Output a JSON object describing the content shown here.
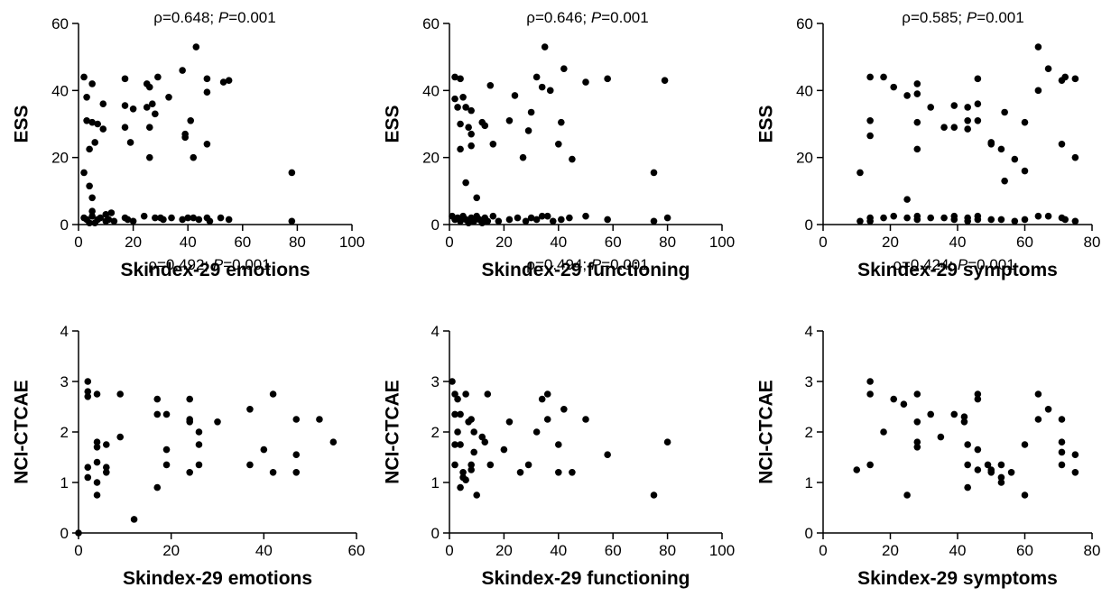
{
  "figure": {
    "panels": [
      {
        "stat_rho": "ρ=0.648; ",
        "stat_p_italic": "P",
        "stat_p_value": "=0.001"
      },
      {
        "stat_rho": "ρ=0.646; ",
        "stat_p_italic": "P",
        "stat_p_value": "=0.001"
      },
      {
        "stat_rho": "ρ=0.585; ",
        "stat_p_italic": "P",
        "stat_p_value": "=0.001"
      },
      {
        "stat_rho": "ρ=0.492; ",
        "stat_p_italic": "P",
        "stat_p_value": "=0.001"
      },
      {
        "stat_rho": "ρ=0.494; ",
        "stat_p_italic": "P",
        "stat_p_value": "=0.001"
      },
      {
        "stat_rho": "ρ=0.424; ",
        "stat_p_italic": "P",
        "stat_p_value": "=0.001"
      }
    ]
  },
  "chart_data": [
    {
      "type": "scatter",
      "xlabel": "Skindex-29 emotions",
      "ylabel": "ESS",
      "xlim": [
        0,
        100
      ],
      "ylim": [
        0,
        60
      ],
      "xticks": [
        "0",
        "20",
        "40",
        "60",
        "80",
        "100"
      ],
      "yticks": [
        "0",
        "20",
        "40",
        "60"
      ],
      "annotation": "ρ=0.648; P=0.001",
      "points": [
        [
          2,
          44
        ],
        [
          3,
          38
        ],
        [
          5,
          42
        ],
        [
          3,
          31
        ],
        [
          4,
          22.5
        ],
        [
          2,
          15.5
        ],
        [
          5,
          30.5
        ],
        [
          7,
          30
        ],
        [
          6,
          24.5
        ],
        [
          4,
          11.5
        ],
        [
          5,
          8
        ],
        [
          5,
          4
        ],
        [
          9,
          36
        ],
        [
          9,
          28.5
        ],
        [
          10,
          3
        ],
        [
          12,
          3.5
        ],
        [
          2,
          2
        ],
        [
          3,
          1.5
        ],
        [
          5,
          2.5
        ],
        [
          7,
          1.5
        ],
        [
          8,
          2
        ],
        [
          10,
          1
        ],
        [
          11,
          1.5
        ],
        [
          4,
          0.5
        ],
        [
          6,
          0.5
        ],
        [
          13,
          1
        ],
        [
          17,
          43.5
        ],
        [
          17,
          35.5
        ],
        [
          17,
          29
        ],
        [
          20,
          34.5
        ],
        [
          19,
          24.5
        ],
        [
          17,
          2
        ],
        [
          18,
          1.5
        ],
        [
          20,
          1
        ],
        [
          25,
          42
        ],
        [
          26,
          41
        ],
        [
          25,
          35
        ],
        [
          26,
          29
        ],
        [
          27,
          36
        ],
        [
          28,
          33
        ],
        [
          26,
          20
        ],
        [
          29,
          44
        ],
        [
          28,
          2
        ],
        [
          24,
          2.5
        ],
        [
          30,
          2
        ],
        [
          31,
          1.5
        ],
        [
          33,
          38
        ],
        [
          34,
          2
        ],
        [
          38,
          46
        ],
        [
          39,
          27
        ],
        [
          39,
          26
        ],
        [
          41,
          31
        ],
        [
          42,
          20
        ],
        [
          43,
          53
        ],
        [
          38,
          1.5
        ],
        [
          40,
          2
        ],
        [
          42,
          2
        ],
        [
          44,
          1.5
        ],
        [
          47,
          43.5
        ],
        [
          47,
          39.5
        ],
        [
          47,
          24
        ],
        [
          47,
          2
        ],
        [
          48,
          1
        ],
        [
          53,
          42.5
        ],
        [
          55,
          43
        ],
        [
          52,
          2
        ],
        [
          55,
          1.5
        ],
        [
          78,
          15.5
        ],
        [
          78,
          1
        ]
      ]
    },
    {
      "type": "scatter",
      "xlabel": "Skindex-29 functioning",
      "ylabel": "ESS",
      "xlim": [
        0,
        100
      ],
      "ylim": [
        0,
        60
      ],
      "xticks": [
        "0",
        "20",
        "40",
        "60",
        "80",
        "100"
      ],
      "yticks": [
        "0",
        "20",
        "40",
        "60"
      ],
      "annotation": "ρ=0.646; P=0.001",
      "points": [
        [
          2,
          44
        ],
        [
          4,
          43.5
        ],
        [
          2,
          37.5
        ],
        [
          5,
          38
        ],
        [
          3,
          35
        ],
        [
          6,
          35
        ],
        [
          8,
          34
        ],
        [
          4,
          30
        ],
        [
          7,
          29
        ],
        [
          8,
          27
        ],
        [
          8,
          23.5
        ],
        [
          4,
          22.5
        ],
        [
          6,
          12.5
        ],
        [
          10,
          8
        ],
        [
          12,
          30.5
        ],
        [
          13,
          29.5
        ],
        [
          15,
          41.5
        ],
        [
          16,
          24
        ],
        [
          22,
          31
        ],
        [
          24,
          38.5
        ],
        [
          27,
          20
        ],
        [
          30,
          33.5
        ],
        [
          29,
          28
        ],
        [
          32,
          44
        ],
        [
          34,
          41
        ],
        [
          35,
          53
        ],
        [
          37,
          40
        ],
        [
          40,
          24
        ],
        [
          41,
          30.5
        ],
        [
          42,
          46.5
        ],
        [
          45,
          19.5
        ],
        [
          50,
          42.5
        ],
        [
          58,
          43.5
        ],
        [
          75,
          15.5
        ],
        [
          79,
          43
        ],
        [
          1,
          2.5
        ],
        [
          2,
          1.5
        ],
        [
          3,
          2
        ],
        [
          4,
          1
        ],
        [
          5,
          2.5
        ],
        [
          6,
          1.5
        ],
        [
          7,
          0.5
        ],
        [
          8,
          2
        ],
        [
          9,
          1
        ],
        [
          10,
          2.5
        ],
        [
          11,
          1.5
        ],
        [
          12,
          0.5
        ],
        [
          13,
          2
        ],
        [
          14,
          1
        ],
        [
          16,
          2.5
        ],
        [
          18,
          1
        ],
        [
          22,
          1.5
        ],
        [
          25,
          2
        ],
        [
          28,
          1
        ],
        [
          30,
          2
        ],
        [
          32,
          1.5
        ],
        [
          34,
          2.5
        ],
        [
          36,
          2.5
        ],
        [
          38,
          1
        ],
        [
          41,
          1.5
        ],
        [
          44,
          2
        ],
        [
          50,
          2.5
        ],
        [
          58,
          1.5
        ],
        [
          75,
          1
        ],
        [
          80,
          2
        ]
      ]
    },
    {
      "type": "scatter",
      "xlabel": "Skindex-29 symptoms",
      "ylabel": "ESS",
      "xlim": [
        0,
        80
      ],
      "ylim": [
        0,
        60
      ],
      "xticks": [
        "0",
        "20",
        "40",
        "60",
        "80"
      ],
      "yticks": [
        "0",
        "20",
        "40",
        "60"
      ],
      "annotation": "ρ=0.585; P=0.001",
      "points": [
        [
          11,
          15.5
        ],
        [
          14,
          44
        ],
        [
          14,
          31
        ],
        [
          14,
          26.5
        ],
        [
          18,
          44
        ],
        [
          21,
          41
        ],
        [
          25,
          38.5
        ],
        [
          25,
          7.5
        ],
        [
          28,
          42
        ],
        [
          28,
          39
        ],
        [
          28,
          30.5
        ],
        [
          28,
          22.5
        ],
        [
          32,
          35
        ],
        [
          36,
          29
        ],
        [
          39,
          35.5
        ],
        [
          39,
          29
        ],
        [
          43,
          31
        ],
        [
          43,
          28.5
        ],
        [
          43,
          35
        ],
        [
          46,
          43.5
        ],
        [
          46,
          36
        ],
        [
          46,
          31
        ],
        [
          50,
          24.5
        ],
        [
          50,
          24
        ],
        [
          53,
          22.5
        ],
        [
          54,
          13
        ],
        [
          54,
          33.5
        ],
        [
          57,
          19.5
        ],
        [
          60,
          30.5
        ],
        [
          60,
          16
        ],
        [
          64,
          53
        ],
        [
          64,
          40
        ],
        [
          67,
          46.5
        ],
        [
          71,
          43
        ],
        [
          71,
          24
        ],
        [
          72,
          44
        ],
        [
          75,
          20
        ],
        [
          75,
          43.5
        ],
        [
          11,
          1
        ],
        [
          14,
          2
        ],
        [
          14,
          1
        ],
        [
          18,
          2
        ],
        [
          21,
          2.5
        ],
        [
          25,
          2
        ],
        [
          28,
          2.5
        ],
        [
          28,
          1.5
        ],
        [
          32,
          2
        ],
        [
          36,
          2
        ],
        [
          39,
          2.5
        ],
        [
          39,
          1.5
        ],
        [
          43,
          2
        ],
        [
          43,
          1
        ],
        [
          46,
          2.5
        ],
        [
          46,
          1.5
        ],
        [
          50,
          1.5
        ],
        [
          53,
          1.5
        ],
        [
          57,
          1
        ],
        [
          60,
          1.5
        ],
        [
          64,
          2.5
        ],
        [
          67,
          2.5
        ],
        [
          71,
          2
        ],
        [
          72,
          1.5
        ],
        [
          75,
          1
        ]
      ]
    },
    {
      "type": "scatter",
      "xlabel": "Skindex-29 emotions",
      "ylabel": "NCI-CTCAE",
      "xlim": [
        0,
        60
      ],
      "ylim": [
        0,
        4
      ],
      "xticks": [
        "0",
        "20",
        "40",
        "60"
      ],
      "yticks": [
        "0",
        "1",
        "2",
        "3",
        "4"
      ],
      "annotation": "ρ=0.492; P=0.001",
      "points": [
        [
          0,
          0
        ],
        [
          2,
          3
        ],
        [
          2,
          2.8
        ],
        [
          2,
          2.7
        ],
        [
          2,
          1.3
        ],
        [
          2,
          1.1
        ],
        [
          4,
          2.75
        ],
        [
          4,
          1.8
        ],
        [
          4,
          1.7
        ],
        [
          4,
          1.4
        ],
        [
          4,
          1.0
        ],
        [
          4,
          0.75
        ],
        [
          6,
          1.75
        ],
        [
          6,
          1.3
        ],
        [
          6,
          1.2
        ],
        [
          9,
          2.75
        ],
        [
          9,
          1.9
        ],
        [
          12,
          0.27
        ],
        [
          17,
          2.65
        ],
        [
          17,
          2.35
        ],
        [
          17,
          0.9
        ],
        [
          19,
          2.35
        ],
        [
          19,
          1.65
        ],
        [
          19,
          1.35
        ],
        [
          24,
          2.65
        ],
        [
          24,
          2.25
        ],
        [
          24,
          2.2
        ],
        [
          24,
          1.2
        ],
        [
          26,
          2.0
        ],
        [
          26,
          1.75
        ],
        [
          26,
          1.35
        ],
        [
          30,
          2.2
        ],
        [
          37,
          2.45
        ],
        [
          37,
          1.35
        ],
        [
          40,
          1.65
        ],
        [
          42,
          2.75
        ],
        [
          42,
          1.2
        ],
        [
          47,
          2.25
        ],
        [
          47,
          1.55
        ],
        [
          47,
          1.2
        ],
        [
          52,
          2.25
        ],
        [
          55,
          1.8
        ]
      ]
    },
    {
      "type": "scatter",
      "xlabel": "Skindex-29 functioning",
      "ylabel": "NCI-CTCAE",
      "xlim": [
        0,
        100
      ],
      "ylim": [
        0,
        4
      ],
      "xticks": [
        "0",
        "20",
        "40",
        "60",
        "80",
        "100"
      ],
      "yticks": [
        "0",
        "1",
        "2",
        "3",
        "4"
      ],
      "annotation": "ρ=0.494; P=0.001",
      "points": [
        [
          1,
          3
        ],
        [
          2,
          2.75
        ],
        [
          2,
          2.35
        ],
        [
          2,
          1.75
        ],
        [
          2,
          1.35
        ],
        [
          3,
          2.65
        ],
        [
          3,
          2.0
        ],
        [
          4,
          2.35
        ],
        [
          4,
          1.75
        ],
        [
          4,
          0.9
        ],
        [
          5,
          1.2
        ],
        [
          5,
          1.1
        ],
        [
          6,
          2.75
        ],
        [
          6,
          1.05
        ],
        [
          7,
          2.2
        ],
        [
          8,
          2.25
        ],
        [
          8,
          1.35
        ],
        [
          8,
          1.25
        ],
        [
          9,
          2.0
        ],
        [
          9,
          1.6
        ],
        [
          10,
          0.75
        ],
        [
          12,
          1.9
        ],
        [
          13,
          1.8
        ],
        [
          14,
          2.75
        ],
        [
          15,
          1.35
        ],
        [
          20,
          1.65
        ],
        [
          22,
          2.2
        ],
        [
          26,
          1.2
        ],
        [
          29,
          1.35
        ],
        [
          32,
          2.0
        ],
        [
          34,
          2.65
        ],
        [
          36,
          2.75
        ],
        [
          36,
          2.25
        ],
        [
          40,
          1.75
        ],
        [
          40,
          1.2
        ],
        [
          42,
          2.45
        ],
        [
          45,
          1.2
        ],
        [
          50,
          2.25
        ],
        [
          58,
          1.55
        ],
        [
          75,
          0.75
        ],
        [
          80,
          1.8
        ]
      ]
    },
    {
      "type": "scatter",
      "xlabel": "Skindex-29 symptoms",
      "ylabel": "NCI-CTCAE",
      "xlim": [
        0,
        80
      ],
      "ylim": [
        0,
        4
      ],
      "xticks": [
        "0",
        "20",
        "40",
        "60",
        "80"
      ],
      "yticks": [
        "0",
        "1",
        "2",
        "3",
        "4"
      ],
      "annotation": "ρ=0.424; P=0.001",
      "points": [
        [
          10,
          1.25
        ],
        [
          14,
          3
        ],
        [
          14,
          2.75
        ],
        [
          14,
          1.35
        ],
        [
          18,
          2.0
        ],
        [
          21,
          2.65
        ],
        [
          24,
          2.55
        ],
        [
          25,
          0.75
        ],
        [
          28,
          2.75
        ],
        [
          28,
          2.2
        ],
        [
          28,
          1.8
        ],
        [
          28,
          1.7
        ],
        [
          32,
          2.35
        ],
        [
          35,
          1.9
        ],
        [
          39,
          2.35
        ],
        [
          42,
          2.3
        ],
        [
          42,
          2.2
        ],
        [
          43,
          1.75
        ],
        [
          43,
          1.35
        ],
        [
          43,
          0.9
        ],
        [
          46,
          2.75
        ],
        [
          46,
          2.65
        ],
        [
          46,
          1.65
        ],
        [
          46,
          1.25
        ],
        [
          49,
          1.35
        ],
        [
          50,
          1.2
        ],
        [
          50,
          1.25
        ],
        [
          53,
          1.35
        ],
        [
          53,
          1.1
        ],
        [
          53,
          1.0
        ],
        [
          56,
          1.2
        ],
        [
          60,
          1.75
        ],
        [
          60,
          0.75
        ],
        [
          64,
          2.75
        ],
        [
          64,
          2.25
        ],
        [
          67,
          2.45
        ],
        [
          71,
          2.25
        ],
        [
          71,
          1.8
        ],
        [
          71,
          1.6
        ],
        [
          71,
          1.35
        ],
        [
          75,
          1.55
        ],
        [
          75,
          1.2
        ]
      ]
    }
  ]
}
